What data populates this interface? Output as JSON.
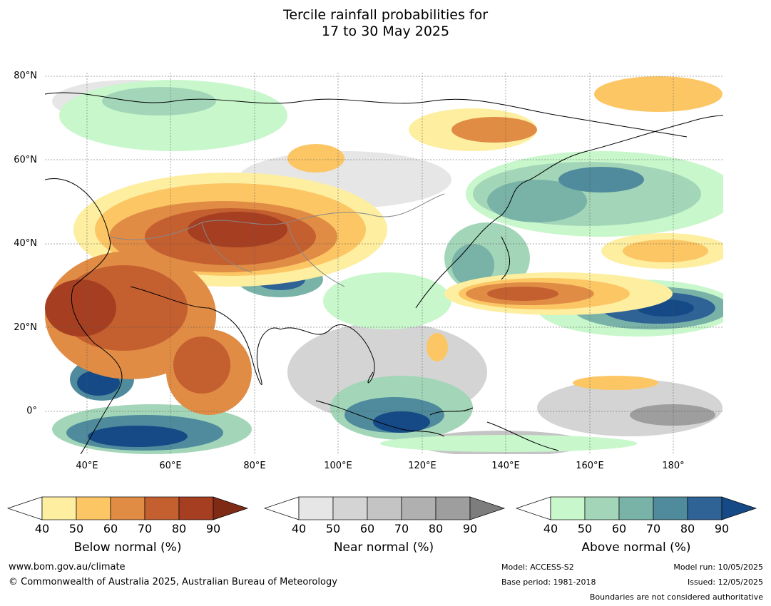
{
  "title_line1": "Tercile rainfall probabilities for",
  "title_line2": "17 to 30 May 2025",
  "lat_labels": [
    "80°N",
    "60°N",
    "40°N",
    "20°N",
    "0°"
  ],
  "lon_labels": [
    "40°E",
    "60°E",
    "80°E",
    "100°E",
    "120°E",
    "140°E",
    "160°E",
    "180°"
  ],
  "colorbars": [
    {
      "title": "Below normal (%)",
      "ticks": [
        "40",
        "50",
        "60",
        "70",
        "80",
        "90"
      ],
      "colors": [
        "#ffffff",
        "#fdeea0",
        "#fcc665",
        "#e08c45",
        "#c45f30",
        "#a63f22",
        "#7f2a15"
      ]
    },
    {
      "title": "Near normal (%)",
      "ticks": [
        "40",
        "50",
        "60",
        "70",
        "80",
        "90"
      ],
      "colors": [
        "#ffffff",
        "#e6e6e6",
        "#d4d4d4",
        "#c4c4c4",
        "#b0b0b0",
        "#9e9e9e",
        "#7d7d7d"
      ]
    },
    {
      "title": "Above normal (%)",
      "ticks": [
        "40",
        "50",
        "60",
        "70",
        "80",
        "90"
      ],
      "colors": [
        "#ffffff",
        "#c8f7cc",
        "#a3d6b8",
        "#79b3a8",
        "#4f8b9c",
        "#2f6396",
        "#154a86"
      ]
    }
  ],
  "footer": {
    "website": "www.bom.gov.au/climate",
    "copyright": "© Commonwealth of Australia 2025, Australian Bureau of Meteorology",
    "model": "Model: ACCESS-S2",
    "base_period": "Base period: 1981-2018",
    "model_run": "Model run: 10/05/2025",
    "issued": "Issued: 12/05/2025",
    "disclaimer": "Boundaries are not considered authoritative"
  }
}
